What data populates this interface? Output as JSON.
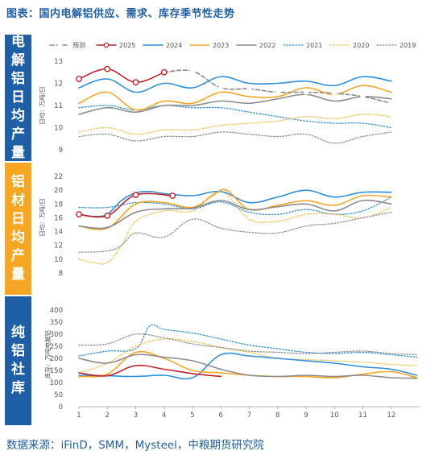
{
  "title": "图表：国内电解铝供应、需求、库存季节性走势",
  "source": "数据来源：iFinD，SMM，Mysteel，中粮期货研究院",
  "side_labels": [
    "电解铝日均产量",
    "铝材日均产量",
    "纯铝社库"
  ],
  "colors": {
    "forecast": "#c0222a",
    "2025": "#c0222a",
    "2024": "#2e8fd8",
    "2023": "#f5a623",
    "2022": "#8c8c8c",
    "2021": "#2e8fd8",
    "2020": "#f5c24a",
    "2019": "#8c8c8c"
  },
  "chart_data": [
    {
      "type": "line",
      "ylabel": "日均：万吨/日",
      "ylim": [
        9,
        13
      ],
      "yticks": [
        9,
        10,
        11,
        12,
        13
      ],
      "legend": [
        "预测",
        "2025",
        "2024",
        "2023",
        "2022",
        "2021",
        "2020",
        "2019"
      ],
      "legend_position": "top",
      "series": [
        {
          "name": "预测",
          "style": "dashed-marker",
          "x": [
            4,
            5,
            6,
            7,
            8,
            9,
            10,
            11,
            12
          ],
          "values": [
            12.5,
            12.55,
            11.8,
            11.75,
            11.6,
            11.6,
            11.55,
            11.4,
            11.1
          ]
        },
        {
          "name": "2025",
          "style": "solid-marker",
          "x": [
            1,
            2,
            3,
            4
          ],
          "values": [
            12.2,
            12.65,
            12.05,
            12.5
          ]
        },
        {
          "name": "2024",
          "style": "solid",
          "x": [
            1,
            2,
            3,
            4,
            5,
            6,
            7,
            8,
            9,
            10,
            11,
            12
          ],
          "values": [
            11.8,
            12.2,
            11.6,
            12.0,
            11.8,
            12.3,
            12.0,
            12.0,
            12.1,
            11.9,
            12.3,
            12.1
          ]
        },
        {
          "name": "2023",
          "style": "solid",
          "x": [
            1,
            2,
            3,
            4,
            5,
            6,
            7,
            8,
            9,
            10,
            11,
            12
          ],
          "values": [
            11.1,
            11.6,
            10.8,
            11.2,
            11.1,
            11.6,
            11.4,
            11.4,
            11.8,
            11.5,
            11.9,
            11.6
          ]
        },
        {
          "name": "2022",
          "style": "solid",
          "x": [
            1,
            2,
            3,
            4,
            5,
            6,
            7,
            8,
            9,
            10,
            11,
            12
          ],
          "values": [
            10.6,
            10.9,
            10.7,
            11.0,
            11.0,
            11.2,
            11.1,
            11.3,
            11.5,
            11.2,
            11.4,
            11.3
          ]
        },
        {
          "name": "2021",
          "style": "dotted",
          "x": [
            1,
            2,
            3,
            4,
            5,
            6,
            7,
            8,
            9,
            10,
            11,
            12
          ],
          "values": [
            10.9,
            11.0,
            10.8,
            11.0,
            10.9,
            10.9,
            10.7,
            10.5,
            10.3,
            10.2,
            10.2,
            10.0
          ]
        },
        {
          "name": "2020",
          "style": "dotted",
          "x": [
            1,
            2,
            3,
            4,
            5,
            6,
            7,
            8,
            9,
            10,
            11,
            12
          ],
          "values": [
            9.8,
            10.0,
            9.7,
            9.9,
            9.9,
            10.1,
            10.2,
            10.3,
            10.5,
            10.4,
            10.6,
            10.5
          ]
        },
        {
          "name": "2019",
          "style": "dotted",
          "x": [
            1,
            2,
            3,
            4,
            5,
            6,
            7,
            8,
            9,
            10,
            11,
            12
          ],
          "values": [
            9.6,
            9.7,
            9.4,
            9.6,
            9.6,
            9.8,
            9.7,
            9.6,
            9.7,
            9.3,
            9.6,
            9.8
          ]
        }
      ]
    },
    {
      "type": "line",
      "ylabel": "日均：万吨/日",
      "ylim": [
        8,
        22
      ],
      "yticks": [
        8,
        10,
        12,
        14,
        16,
        18,
        20,
        22
      ],
      "series": [
        {
          "name": "2025",
          "style": "solid-marker",
          "x": [
            1,
            2,
            3,
            4.3
          ],
          "values": [
            16.5,
            16.3,
            19.3,
            19.2
          ]
        },
        {
          "name": "2024",
          "style": "solid",
          "x": [
            1,
            1.5,
            2,
            2.5,
            3,
            3.5,
            4,
            5,
            6,
            7,
            8,
            9,
            10,
            11,
            12
          ],
          "values": [
            16.5,
            16.2,
            16.5,
            18.5,
            19.6,
            19.8,
            19.5,
            19.2,
            19.8,
            18.2,
            19.0,
            20.0,
            19.0,
            19.7,
            19.7
          ]
        },
        {
          "name": "2023",
          "style": "solid",
          "x": [
            1,
            2,
            3,
            4,
            5,
            5.7,
            6.2,
            7,
            8,
            9,
            10,
            11,
            12
          ],
          "values": [
            14.8,
            14.5,
            18.0,
            18.2,
            17.5,
            19.2,
            20.0,
            17.2,
            17.8,
            18.5,
            17.8,
            19.2,
            19.0
          ]
        },
        {
          "name": "2022",
          "style": "solid",
          "x": [
            1,
            2,
            3,
            4,
            5,
            6,
            7,
            8,
            9,
            10,
            11,
            12
          ],
          "values": [
            14.8,
            14.6,
            16.8,
            17.3,
            17.4,
            18.5,
            17.2,
            17.6,
            18.0,
            17.0,
            18.5,
            18.0
          ]
        },
        {
          "name": "2021",
          "style": "dotted",
          "x": [
            1,
            2,
            3,
            4,
            5,
            6,
            7,
            8,
            9,
            10,
            11,
            12
          ],
          "values": [
            17.5,
            17.5,
            18.2,
            18.0,
            17.3,
            18.3,
            16.8,
            16.5,
            17.2,
            16.5,
            17.0,
            19.0
          ]
        },
        {
          "name": "2020",
          "style": "dotted",
          "x": [
            1,
            1.5,
            2,
            2.5,
            3,
            4,
            5,
            6,
            7,
            8,
            9,
            10,
            11,
            12
          ],
          "values": [
            10.0,
            9.5,
            9.5,
            12.0,
            15.5,
            17.0,
            17.0,
            19.8,
            15.8,
            15.5,
            16.5,
            16.5,
            16.0,
            17.5
          ]
        },
        {
          "name": "2019",
          "style": "dotted",
          "x": [
            1,
            2,
            2.5,
            3,
            4,
            5,
            6,
            7,
            8,
            9,
            10,
            11,
            12
          ],
          "values": [
            11.0,
            11.2,
            12.0,
            13.8,
            13.2,
            15.8,
            14.5,
            13.9,
            13.8,
            14.8,
            15.2,
            16.0,
            16.8
          ]
        }
      ]
    },
    {
      "type": "line",
      "ylabel": "库存：万吨电解铝",
      "ylim": [
        0,
        400
      ],
      "yticks": [
        0,
        50,
        100,
        150,
        200,
        250,
        300,
        350,
        400
      ],
      "xlim": [
        1,
        13
      ],
      "xticks": [
        1,
        2,
        3,
        4,
        5,
        6,
        7,
        8,
        9,
        10,
        11,
        12
      ],
      "series": [
        {
          "name": "2025",
          "style": "solid",
          "x": [
            1,
            2,
            3,
            4,
            5,
            6
          ],
          "values": [
            140,
            128,
            170,
            155,
            137,
            125
          ]
        },
        {
          "name": "2024",
          "style": "solid",
          "x": [
            1,
            2,
            3,
            4,
            5,
            6,
            7,
            8,
            9,
            10,
            11,
            12,
            12.9
          ],
          "values": [
            130,
            128,
            125,
            130,
            120,
            215,
            210,
            200,
            190,
            180,
            165,
            155,
            130
          ]
        },
        {
          "name": "2023",
          "style": "solid",
          "x": [
            1,
            2,
            3,
            4,
            5,
            6,
            7,
            8,
            9,
            10,
            11,
            12,
            12.9
          ],
          "values": [
            125,
            135,
            225,
            200,
            150,
            140,
            130,
            125,
            125,
            120,
            135,
            145,
            120
          ]
        },
        {
          "name": "2022",
          "style": "solid",
          "x": [
            1,
            2,
            3,
            4,
            5,
            6,
            7,
            8,
            9,
            10,
            11,
            12,
            12.9
          ],
          "values": [
            200,
            180,
            215,
            205,
            190,
            155,
            130,
            125,
            130,
            125,
            130,
            120,
            118
          ]
        },
        {
          "name": "2021",
          "style": "dotted",
          "x": [
            1,
            2,
            3,
            3.5,
            4,
            5,
            6,
            7,
            8,
            9,
            10,
            11,
            12,
            12.9
          ],
          "values": [
            210,
            230,
            240,
            335,
            320,
            305,
            280,
            255,
            240,
            225,
            220,
            225,
            215,
            205
          ]
        },
        {
          "name": "2020",
          "style": "dotted",
          "x": [
            1,
            2,
            3,
            4,
            5,
            6,
            7,
            8,
            9,
            10,
            11,
            12,
            12.9
          ],
          "values": [
            140,
            180,
            250,
            280,
            270,
            245,
            225,
            200,
            195,
            190,
            185,
            175,
            170
          ]
        },
        {
          "name": "2019",
          "style": "dotted",
          "x": [
            1,
            2,
            3,
            4,
            5,
            6,
            7,
            8,
            9,
            10,
            11,
            12,
            12.9
          ],
          "values": [
            255,
            260,
            300,
            285,
            260,
            245,
            230,
            225,
            220,
            225,
            230,
            220,
            215
          ]
        }
      ]
    }
  ]
}
